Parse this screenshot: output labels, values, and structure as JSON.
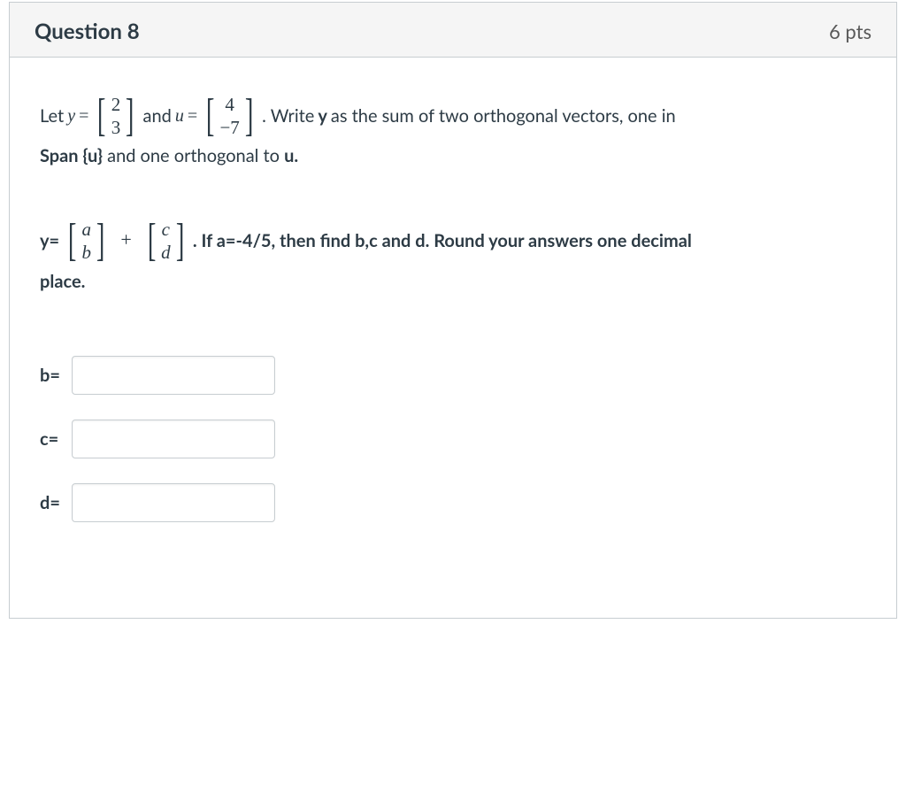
{
  "header": {
    "title": "Question 8",
    "points": "6 pts"
  },
  "problem": {
    "let_text": "Let ",
    "var_y": "y",
    "eq": " = ",
    "y_top": "2",
    "y_bot": "3",
    "and_text": " and ",
    "var_u": "u",
    "u_top": "4",
    "u_bot": "−7",
    "write_text": " . Write ",
    "bold_y": "y",
    "sum_text": " as the sum of two orthogonal vectors, one in",
    "span_pre": "Span {u}",
    "span_mid": " and one orthogonal to ",
    "bold_u": "u.",
    "yeq": "y=",
    "ab_top": "a",
    "ab_bot": "b",
    "plus": "+",
    "cd_top": "c",
    "cd_bot": "d",
    "if_text": " . If a=-4/5, then find b,c and d.  Round your answers one decimal",
    "place": "place."
  },
  "answers": {
    "b_label": "b=",
    "c_label": "c=",
    "d_label": "d="
  }
}
